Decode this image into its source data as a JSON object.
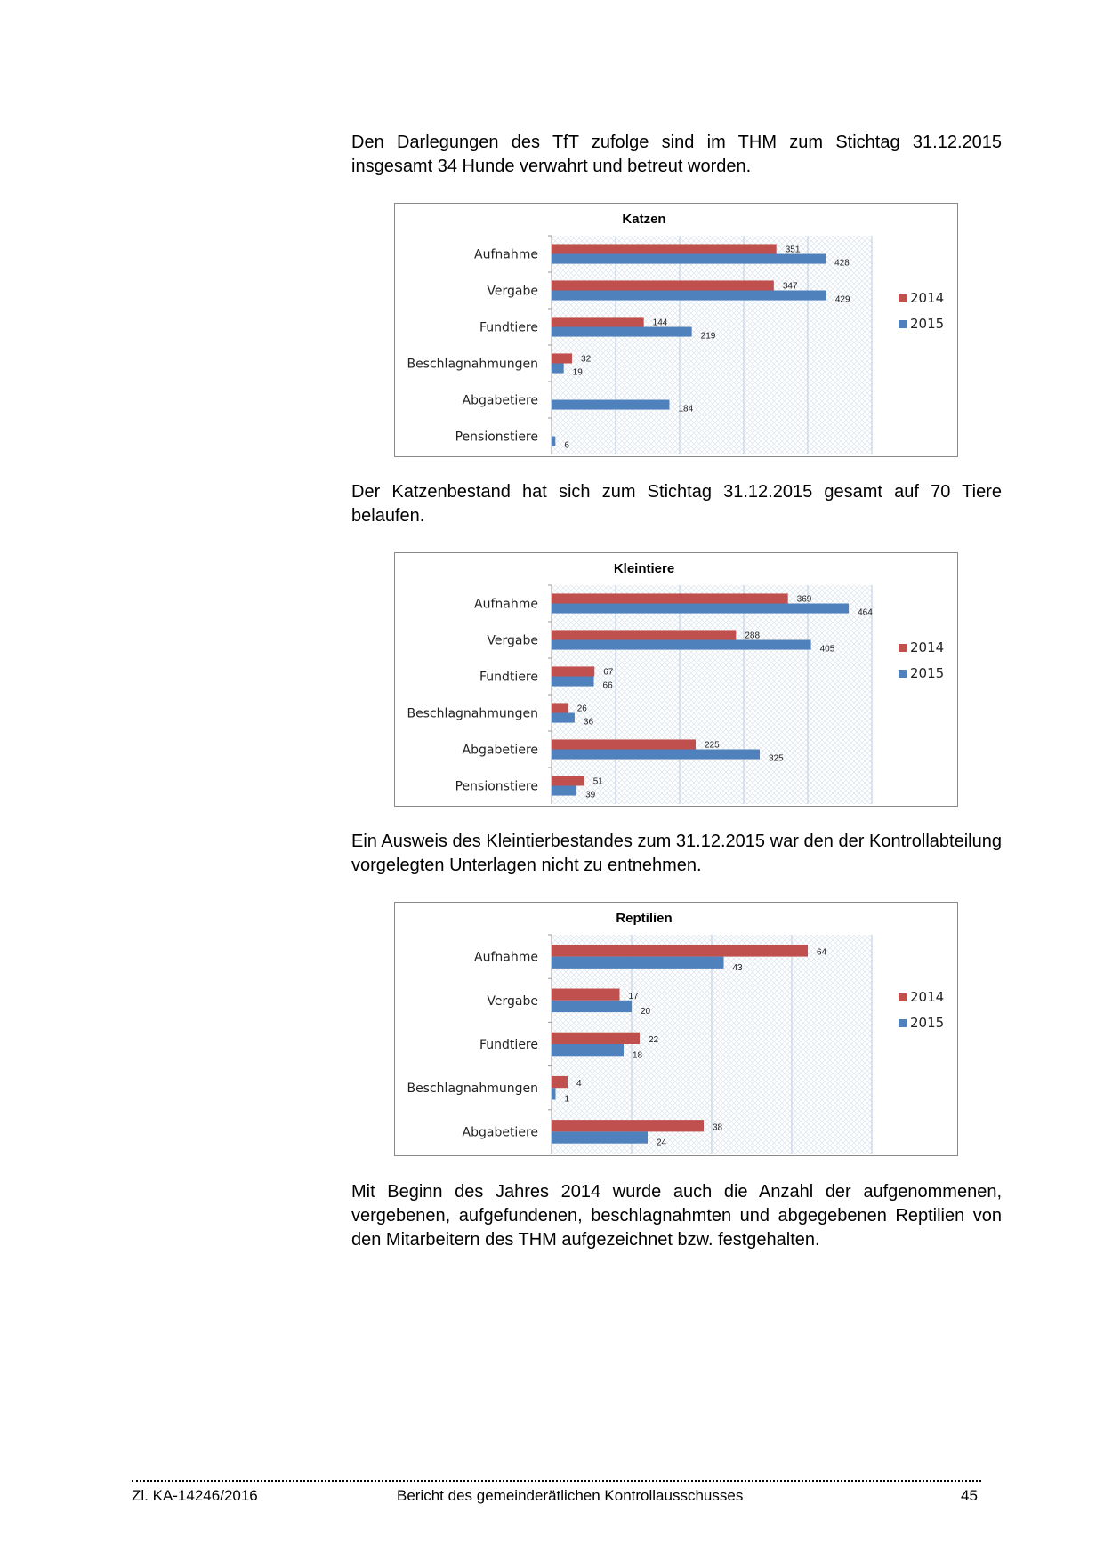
{
  "paragraphs": [
    "Den Darlegungen des TfT zufolge sind im THM zum Stichtag 31.12.2015 insgesamt 34 Hunde verwahrt und betreut worden.",
    "Der Katzenbestand hat sich zum Stichtag 31.12.2015 gesamt auf 70 Tiere belaufen.",
    "Ein Ausweis des Kleintierbestandes zum 31.12.2015 war den der Kon­trollabteilung vorgelegten Unterlagen nicht zu entnehmen.",
    "Mit Beginn des Jahres 2014 wurde auch die Anzahl der aufgenomme­nen, vergebenen, aufgefundenen, beschlagnahmten und abgegebenen Reptilien von den Mitarbeitern des THM aufgezeichnet bzw. festgehal­ten."
  ],
  "colors": {
    "2014": "#c0504d",
    "2015": "#4f81bd",
    "grid": "#b9cde5"
  },
  "chart_data": [
    {
      "type": "bar",
      "orientation": "horizontal",
      "title": "Katzen",
      "categories": [
        "Aufnahme",
        "Vergabe",
        "Fundtiere",
        "Beschlagnahmungen",
        "Abgabetiere",
        "Pensionstiere"
      ],
      "series": [
        {
          "name": "2014",
          "values": [
            351,
            347,
            144,
            32,
            null,
            null
          ]
        },
        {
          "name": "2015",
          "values": [
            428,
            429,
            219,
            19,
            184,
            6
          ]
        }
      ],
      "xlim": [
        0,
        500
      ],
      "grid": true,
      "legend": "right"
    },
    {
      "type": "bar",
      "orientation": "horizontal",
      "title": "Kleintiere",
      "categories": [
        "Aufnahme",
        "Vergabe",
        "Fundtiere",
        "Beschlagnahmungen",
        "Abgabetiere",
        "Pensionstiere"
      ],
      "series": [
        {
          "name": "2014",
          "values": [
            369,
            288,
            67,
            26,
            225,
            51
          ]
        },
        {
          "name": "2015",
          "values": [
            464,
            405,
            66,
            36,
            325,
            39
          ]
        }
      ],
      "xlim": [
        0,
        500
      ],
      "grid": true,
      "legend": "right"
    },
    {
      "type": "bar",
      "orientation": "horizontal",
      "title": "Reptilien",
      "categories": [
        "Aufnahme",
        "Vergabe",
        "Fundtiere",
        "Beschlagnahmungen",
        "Abgabetiere"
      ],
      "series": [
        {
          "name": "2014",
          "values": [
            64,
            17,
            22,
            4,
            38
          ]
        },
        {
          "name": "2015",
          "values": [
            43,
            20,
            18,
            1,
            24
          ]
        }
      ],
      "xlim": [
        0,
        80
      ],
      "grid": true,
      "legend": "right"
    }
  ],
  "footer": {
    "reference": "Zl. KA-14246/2016",
    "title": "Bericht des gemeinderätlichen Kontrollausschusses",
    "page": "45"
  }
}
